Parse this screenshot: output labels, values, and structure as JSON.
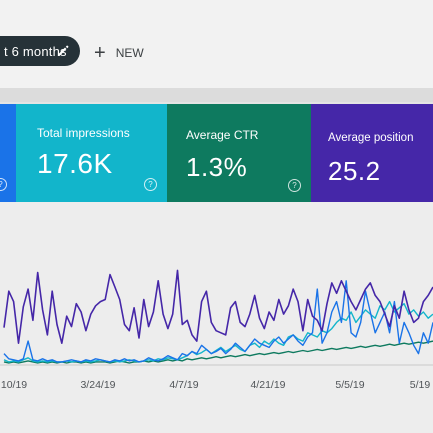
{
  "toolbar": {
    "date_range_label": "t 6 months",
    "new_label": "NEW"
  },
  "metrics": [
    {
      "label": "",
      "value": ""
    },
    {
      "label": "Total impressions",
      "value": "17.6K"
    },
    {
      "label": "Average CTR",
      "value": "1.3%"
    },
    {
      "label": "Average position",
      "value": "25.2"
    }
  ],
  "colors": {
    "clicks": "#1a73e8",
    "impressions": "#12b5cb",
    "ctr": "#0e7a5f",
    "position": "#4527a8"
  },
  "icons": {
    "edit": "pencil-icon",
    "add": "plus-icon",
    "help": "help-circle-icon"
  },
  "chart_data": {
    "type": "line",
    "x_tick_labels": [
      "10/19",
      "3/24/19",
      "4/7/19",
      "4/21/19",
      "5/5/19",
      "5/19"
    ],
    "ylim": [
      0,
      100
    ],
    "grid": true,
    "series": [
      {
        "color": "#4527a8",
        "values": [
          35,
          70,
          60,
          20,
          55,
          72,
          42,
          88,
          52,
          28,
          70,
          38,
          20,
          46,
          36,
          58,
          50,
          32,
          48,
          56,
          60,
          62,
          86,
          74,
          62,
          38,
          32,
          54,
          25,
          62,
          36,
          50,
          80,
          48,
          34,
          48,
          90,
          38,
          42,
          28,
          22,
          60,
          70,
          40,
          32,
          30,
          28,
          54,
          60,
          40,
          36,
          48,
          66,
          44,
          34,
          50,
          42,
          62,
          48,
          56,
          72,
          60,
          32,
          62,
          46,
          42,
          32,
          58,
          78,
          68,
          80,
          70,
          60,
          52,
          62,
          72,
          78,
          66,
          60,
          48,
          36,
          56,
          44,
          70,
          52,
          40,
          44,
          60,
          66,
          74
        ]
      },
      {
        "color": "#1a73e8",
        "values": [
          10,
          5,
          4,
          3,
          5,
          22,
          4,
          3,
          5,
          3,
          4,
          2,
          2,
          3,
          4,
          3,
          2,
          4,
          3,
          5,
          4,
          3,
          2,
          4,
          3,
          5,
          3,
          4,
          2,
          3,
          6,
          4,
          3,
          5,
          8,
          6,
          4,
          10,
          8,
          12,
          10,
          18,
          14,
          10,
          12,
          15,
          10,
          14,
          20,
          16,
          12,
          18,
          24,
          20,
          18,
          16,
          22,
          26,
          20,
          24,
          28,
          22,
          18,
          26,
          30,
          72,
          20,
          30,
          50,
          60,
          40,
          80,
          30,
          26,
          40,
          70,
          50,
          30,
          40,
          50,
          30,
          60,
          20,
          40,
          30,
          18,
          10,
          30,
          20,
          40
        ]
      },
      {
        "color": "#12b5cb",
        "values": [
          4,
          2,
          3,
          2,
          4,
          6,
          3,
          2,
          3,
          2,
          3,
          2,
          2,
          3,
          2,
          3,
          2,
          3,
          2,
          3,
          4,
          3,
          2,
          3,
          2,
          3,
          4,
          3,
          2,
          3,
          4,
          3,
          5,
          4,
          6,
          5,
          4,
          6,
          8,
          12,
          9,
          11,
          14,
          10,
          13,
          16,
          12,
          15,
          18,
          14,
          12,
          18,
          20,
          16,
          22,
          19,
          24,
          20,
          18,
          26,
          28,
          24,
          22,
          30,
          28,
          26,
          32,
          30,
          34,
          40,
          44,
          42,
          50,
          40,
          46,
          52,
          48,
          44,
          56,
          52,
          60,
          50,
          54,
          58,
          48,
          52,
          46,
          50,
          44,
          48
        ]
      },
      {
        "color": "#0e7a5f",
        "values": [
          2,
          1,
          2,
          1,
          2,
          3,
          2,
          1,
          2,
          1,
          2,
          1,
          2,
          1,
          2,
          2,
          1,
          2,
          1,
          2,
          2,
          2,
          1,
          2,
          3,
          2,
          1,
          2,
          2,
          3,
          2,
          3,
          2,
          3,
          4,
          3,
          4,
          3,
          5,
          4,
          5,
          6,
          5,
          6,
          7,
          6,
          7,
          8,
          7,
          8,
          9,
          8,
          9,
          10,
          9,
          10,
          11,
          10,
          11,
          12,
          11,
          12,
          13,
          12,
          13,
          14,
          13,
          14,
          15,
          14,
          15,
          16,
          15,
          16,
          17,
          16,
          17,
          18,
          17,
          18,
          19,
          18,
          19,
          20,
          19,
          20,
          21,
          20,
          21,
          22
        ]
      }
    ]
  }
}
